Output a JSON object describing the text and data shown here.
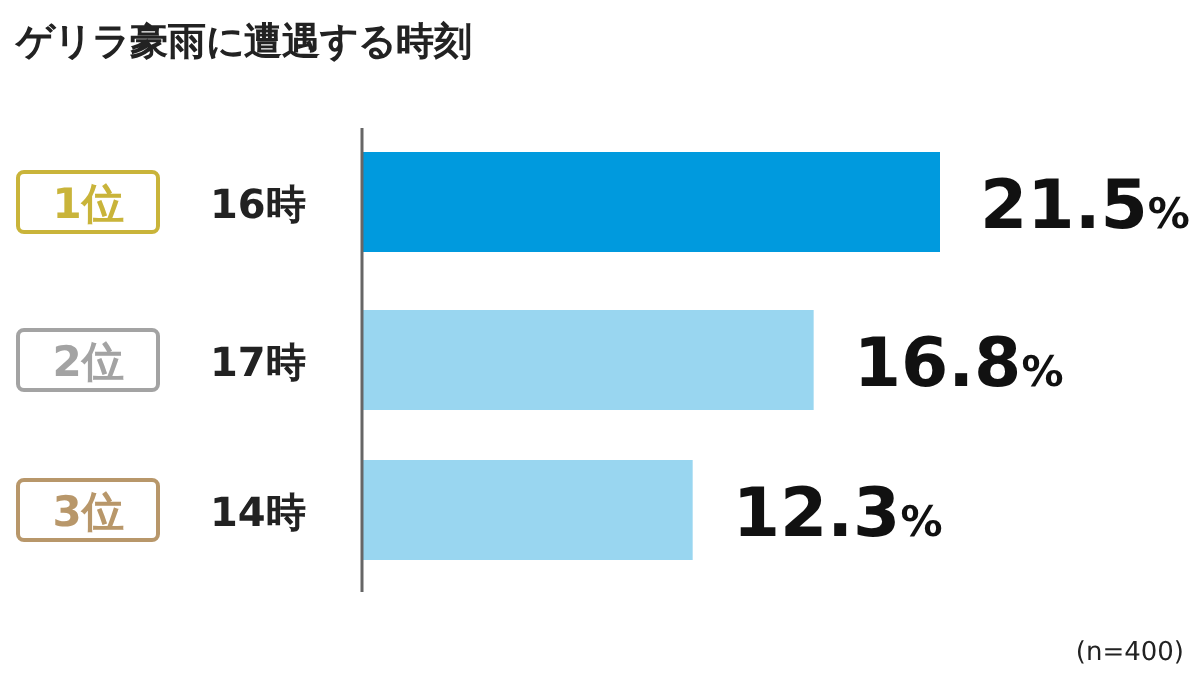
{
  "chart_data": {
    "type": "bar",
    "orientation": "horizontal",
    "title": "ゲリラ豪雨に遭遇する時刻",
    "categories": [
      "16時",
      "17時",
      "14時"
    ],
    "values": [
      21.5,
      16.8,
      12.3
    ],
    "colors": [
      "#009ade",
      "#99d6f0",
      "#99d6f0"
    ],
    "value_labels": [
      "21.5%",
      "16.8%",
      "12.3%"
    ],
    "annotations": [
      "1位",
      "2位",
      "3位",
      "(n=400)"
    ]
  }
}
